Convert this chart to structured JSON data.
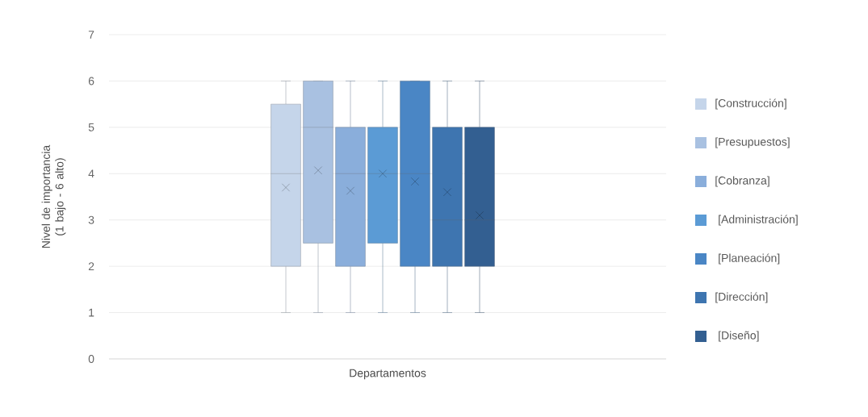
{
  "chart_data": {
    "type": "box",
    "xlabel": "Departamentos",
    "ylabel": "Nivel de importancia (1 bajo - 6 alto)",
    "categories": [
      null
    ],
    "ylim": [
      0,
      7
    ],
    "yticks": [
      0,
      1,
      2,
      3,
      4,
      5,
      6,
      7
    ],
    "grid": "y",
    "legend": "right",
    "series": [
      {
        "name": "[Construcción]",
        "color": "#c5d5ea",
        "boxes": [
          {
            "low": 1,
            "q1": 2,
            "median": 4,
            "q3": 5.5,
            "high": 6,
            "mean": 3.7
          }
        ]
      },
      {
        "name": "[Presupuestos]",
        "color": "#a9c1e1",
        "boxes": [
          {
            "low": 1,
            "q1": 2.5,
            "median": 5,
            "q3": 6,
            "high": 6,
            "mean": 4.07
          }
        ]
      },
      {
        "name": "[Cobranza]",
        "color": "#8aaedb",
        "boxes": [
          {
            "low": 1,
            "q1": 2,
            "median": 4,
            "q3": 5,
            "high": 6,
            "mean": 3.63
          }
        ]
      },
      {
        "name": " [Administración]",
        "color": "#5b9bd5",
        "boxes": [
          {
            "low": 1,
            "q1": 2.5,
            "median": 4,
            "q3": 5,
            "high": 6,
            "mean": 4.0
          }
        ]
      },
      {
        "name": " [Planeación]",
        "color": "#4a86c5",
        "boxes": [
          {
            "low": 1,
            "q1": 2,
            "median": 4,
            "q3": 6,
            "high": 6,
            "mean": 3.83
          }
        ]
      },
      {
        "name": "[Dirección]",
        "color": "#3e75b0",
        "boxes": [
          {
            "low": 1,
            "q1": 2,
            "median": 3,
            "q3": 5,
            "high": 6,
            "mean": 3.6
          }
        ]
      },
      {
        "name": " [Diseño]",
        "color": "#335f91",
        "boxes": [
          {
            "low": 1,
            "q1": 2,
            "median": 3,
            "q3": 5,
            "high": 6,
            "mean": 3.1
          }
        ]
      }
    ]
  }
}
